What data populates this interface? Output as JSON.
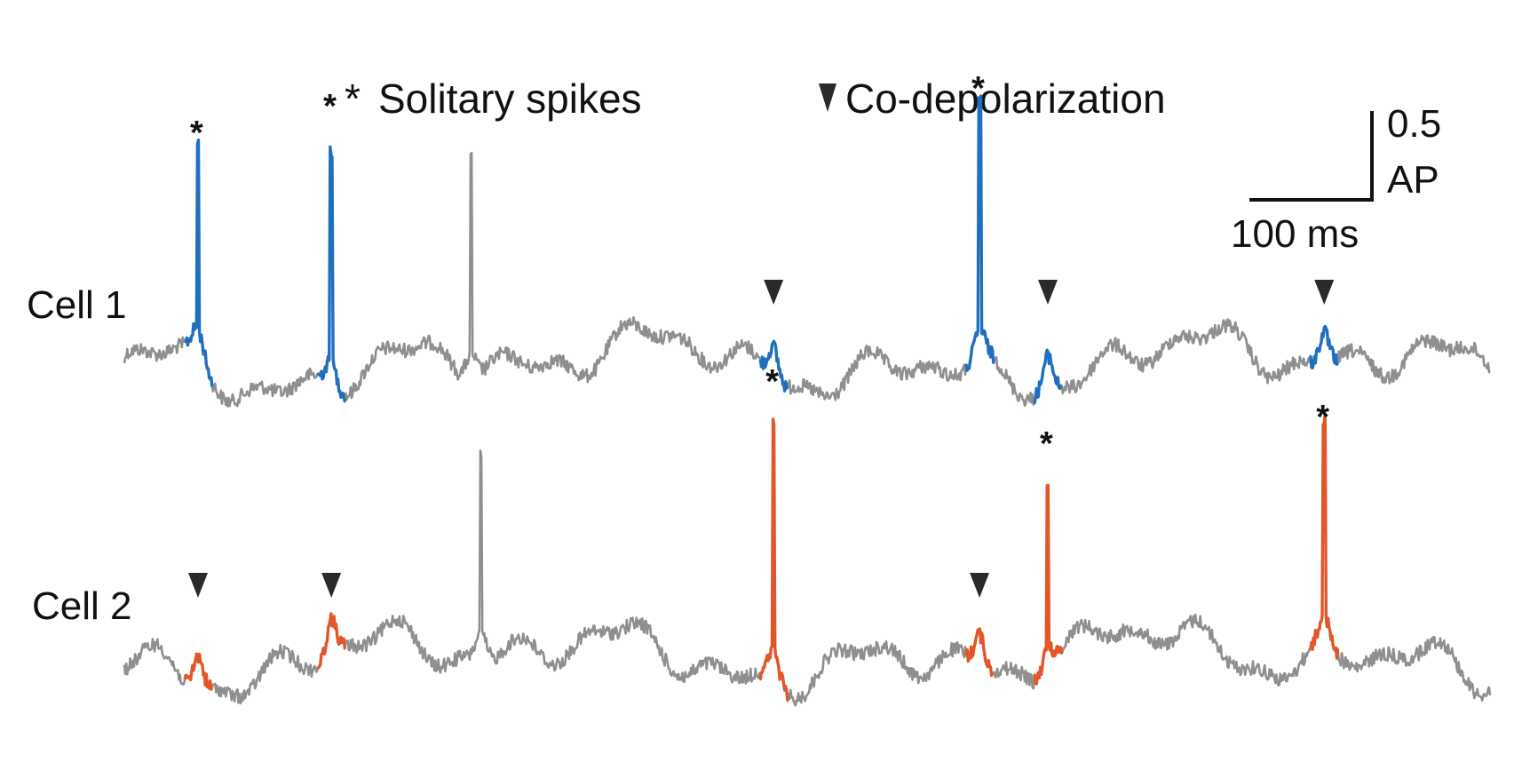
{
  "chart_data": {
    "type": "line",
    "title": "",
    "legend": {
      "solitary_symbol": "*",
      "solitary_label": "Solitary spikes",
      "codep_label": "Co-depolarization"
    },
    "scale_bar": {
      "amplitude_value": "0.5",
      "amplitude_unit": "AP",
      "time_label": "100 ms"
    },
    "colors": {
      "baseline": "#8f8f8f",
      "cell1_event": "#1f6fbf",
      "cell2_event": "#e2562a",
      "marker": "#2a2a2a"
    },
    "series": [
      {
        "name": "Cell 1",
        "solitary_spike_times_ms": [
          68,
          191,
          789
        ],
        "co_depolarization_times_ms": [
          599,
          852,
          1107
        ],
        "unmarked_spike_times_ms": [
          320
        ],
        "peak_amplitude_AP": {
          "68": 1.05,
          "191": 1.2,
          "789": 1.3,
          "320": 1.1
        }
      },
      {
        "name": "Cell 2",
        "solitary_spike_times_ms": [
          599,
          852,
          1107
        ],
        "co_depolarization_times_ms": [
          68,
          191,
          789
        ],
        "unmarked_spike_times_ms": [
          329
        ],
        "peak_amplitude_AP": {
          "599": 1.3,
          "852": 0.95,
          "1107": 1.1,
          "329": 1.0
        }
      }
    ]
  }
}
